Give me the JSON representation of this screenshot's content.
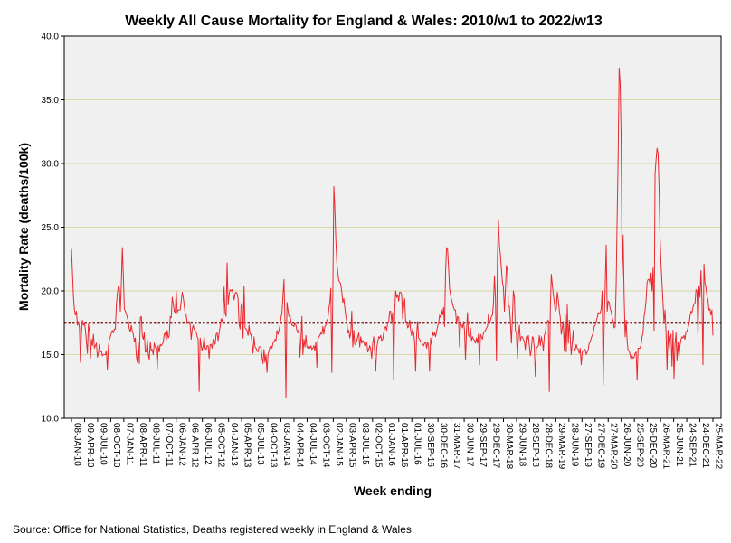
{
  "chart_data": {
    "type": "line",
    "title": "Weekly All Cause Mortality for England & Wales: 2010/w1 to 2022/w13",
    "xlabel": "Week ending",
    "ylabel": "Mortality Rate (deaths/100k)",
    "ylim": [
      10.0,
      40.0
    ],
    "yticks": [
      "10.0",
      "15.0",
      "20.0",
      "25.0",
      "30.0",
      "35.0",
      "40.0"
    ],
    "grid": "horizontal",
    "reference_line": {
      "name": "mean",
      "value": 17.5
    },
    "x_tick_labels": [
      "08-JAN-10",
      "09-APR-10",
      "09-JUL-10",
      "08-OCT-10",
      "07-JAN-11",
      "08-APR-11",
      "08-JUL-11",
      "07-OCT-11",
      "06-JAN-12",
      "06-APR-12",
      "06-JUL-12",
      "05-OCT-12",
      "04-JAN-13",
      "05-APR-13",
      "05-JUL-13",
      "04-OCT-13",
      "03-JAN-14",
      "04-APR-14",
      "04-JUL-14",
      "03-OCT-14",
      "02-JAN-15",
      "03-APR-15",
      "03-JUL-15",
      "02-OCT-15",
      "01-JAN-16",
      "01-APR-16",
      "01-JUL-16",
      "30-SEP-16",
      "30-DEC-16",
      "31-MAR-17",
      "30-JUN-17",
      "29-SEP-17",
      "29-DEC-17",
      "30-MAR-18",
      "29-JUN-18",
      "28-SEP-18",
      "28-DEC-18",
      "29-MAR-19",
      "28-JUN-19",
      "27-SEP-19",
      "27-DEC-19",
      "27-MAR-20",
      "26-JUN-20",
      "25-SEP-20",
      "25-DEC-20",
      "26-MAR-21",
      "25-JUN-21",
      "24-SEP-21",
      "24-DEC-21",
      "25-MAR-22"
    ],
    "series": [
      {
        "name": "Weekly mortality rate",
        "color": "#e8282e",
        "values": [
          23.3,
          21.4,
          19.5,
          18.5,
          18.1,
          18.4,
          17.3,
          17.6,
          17.1,
          14.4,
          16.7,
          17.7,
          17.3,
          17.5,
          16.9,
          16.0,
          15.1,
          17.4,
          16.8,
          14.7,
          16.2,
          15.7,
          16.6,
          15.5,
          15.7,
          15.9,
          14.8,
          15.1,
          15.8,
          15.2,
          15.3,
          14.9,
          15.0,
          15.0,
          15.0,
          15.3,
          13.8,
          15.6,
          16.2,
          16.4,
          16.7,
          16.9,
          16.7,
          17.0,
          17.0,
          18.9,
          19.8,
          20.4,
          20.2,
          18.4,
          20.7,
          23.4,
          21.2,
          18.6,
          18.4,
          18.2,
          17.9,
          17.6,
          17.0,
          16.8,
          17.3,
          16.8,
          16.6,
          16.0,
          16.3,
          14.9,
          14.4,
          15.9,
          14.3,
          17.9,
          18.0,
          16.5,
          16.2,
          16.7,
          15.2,
          15.2,
          16.2,
          15.0,
          14.6,
          16.0,
          15.3,
          15.4,
          15.0,
          15.9,
          15.6,
          15.4,
          13.9,
          15.7,
          15.2,
          15.8,
          15.7,
          15.8,
          16.0,
          16.6,
          16.7,
          16.1,
          16.9,
          16.3,
          16.5,
          18.0,
          17.9,
          19.5,
          19.0,
          18.4,
          18.3,
          20.0,
          18.3,
          18.5,
          18.5,
          18.5,
          19.2,
          19.9,
          19.5,
          18.9,
          18.2,
          18.1,
          17.5,
          17.5,
          17.6,
          17.3,
          16.2,
          17.0,
          17.3,
          17.0,
          16.8,
          16.8,
          16.4,
          16.2,
          12.1,
          16.3,
          15.7,
          15.3,
          15.7,
          16.4,
          15.5,
          15.4,
          15.7,
          15.7,
          14.7,
          15.8,
          15.8,
          15.5,
          16.2,
          16.1,
          15.8,
          16.6,
          16.7,
          16.1,
          16.7,
          17.2,
          17.8,
          17.6,
          18.0,
          20.3,
          18.3,
          18.0,
          22.2,
          18.9,
          19.7,
          20.1,
          20.0,
          20.1,
          19.8,
          19.3,
          19.8,
          19.9,
          19.8,
          19.4,
          17.4,
          17.0,
          18.8,
          19.1,
          16.3,
          20.4,
          17.1,
          17.0,
          16.9,
          16.5,
          17.3,
          16.6,
          16.6,
          15.9,
          15.1,
          16.4,
          15.6,
          15.5,
          15.3,
          15.2,
          15.6,
          15.6,
          15.6,
          14.8,
          14.3,
          15.4,
          14.4,
          15.0,
          13.6,
          15.0,
          15.3,
          15.6,
          15.7,
          15.5,
          15.9,
          16.0,
          16.2,
          16.1,
          16.9,
          16.6,
          16.9,
          17.3,
          17.9,
          18.3,
          19.6,
          20.9,
          17.7,
          11.6,
          19.1,
          18.5,
          18.0,
          18.1,
          17.6,
          17.3,
          17.3,
          17.2,
          17.5,
          17.3,
          16.9,
          16.7,
          17.0,
          14.8,
          16.1,
          18.0,
          15.0,
          16.2,
          15.6,
          16.5,
          15.6,
          15.5,
          15.7,
          15.5,
          15.7,
          15.4,
          15.5,
          15.7,
          15.3,
          16.0,
          14.0,
          16.2,
          16.4,
          16.5,
          16.7,
          16.6,
          17.2,
          16.6,
          17.2,
          17.3,
          17.7,
          17.8,
          18.6,
          19.1,
          20.2,
          13.6,
          19.7,
          28.2,
          26.5,
          24.0,
          22.2,
          21.4,
          20.8,
          20.7,
          20.5,
          19.9,
          19.1,
          19.4,
          18.7,
          18.0,
          17.6,
          16.7,
          16.9,
          16.3,
          16.7,
          18.4,
          15.6,
          16.9,
          15.8,
          15.8,
          16.1,
          16.4,
          16.7,
          15.6,
          16.4,
          15.9,
          16.1,
          16.0,
          15.7,
          15.7,
          16.0,
          15.2,
          15.4,
          15.7,
          15.4,
          14.7,
          15.9,
          16.4,
          15.2,
          13.7,
          15.5,
          16.0,
          16.4,
          16.3,
          16.5,
          16.1,
          16.2,
          16.7,
          17.1,
          17.2,
          16.9,
          17.5,
          17.6,
          18.4,
          18.4,
          17.6,
          18.3,
          13.0,
          18.4,
          20.0,
          19.5,
          19.7,
          19.2,
          19.9,
          19.9,
          19.7,
          17.8,
          18.8,
          19.4,
          17.5,
          17.6,
          17.1,
          17.2,
          17.7,
          16.9,
          16.5,
          17.0,
          16.7,
          16.0,
          13.7,
          16.6,
          17.6,
          16.3,
          16.2,
          16.0,
          16.0,
          15.8,
          15.7,
          15.9,
          16.0,
          15.5,
          16.0,
          15.7,
          13.7,
          16.3,
          15.8,
          16.8,
          16.5,
          16.7,
          16.4,
          16.8,
          17.2,
          17.5,
          18.1,
          17.9,
          18.5,
          18.1,
          18.7,
          17.2,
          21.4,
          23.4,
          23.3,
          21.9,
          20.2,
          19.7,
          19.3,
          19.0,
          18.7,
          18.5,
          18.5,
          17.4,
          18.0,
          17.9,
          15.6,
          17.4,
          17.3,
          17.1,
          17.6,
          16.9,
          14.6,
          16.9,
          18.3,
          16.5,
          16.4,
          17.1,
          16.1,
          16.4,
          16.2,
          16.1,
          15.9,
          16.3,
          15.9,
          16.6,
          14.2,
          16.6,
          16.4,
          16.2,
          16.7,
          16.8,
          16.9,
          17.1,
          17.2,
          18.2,
          17.4,
          17.7,
          18.0,
          18.1,
          19.0,
          21.2,
          19.5,
          14.5,
          22.6,
          25.5,
          23.6,
          22.8,
          21.7,
          20.7,
          20.3,
          18.4,
          20.1,
          22.0,
          21.6,
          18.8,
          18.8,
          17.6,
          15.9,
          17.9,
          20.0,
          19.5,
          16.9,
          16.7,
          14.7,
          16.4,
          17.3,
          16.1,
          16.4,
          16.4,
          16.2,
          16.0,
          15.4,
          16.4,
          16.2,
          16.5,
          15.7,
          14.9,
          15.4,
          16.4,
          16.3,
          15.5,
          13.3,
          15.5,
          15.6,
          15.7,
          16.5,
          15.7,
          16.4,
          16.0,
          15.3,
          16.5,
          16.7,
          17.4,
          17.6,
          17.7,
          12.1,
          18.6,
          21.3,
          20.5,
          19.7,
          19.1,
          18.4,
          18.6,
          19.9,
          19.3,
          18.5,
          17.9,
          16.6,
          17.1,
          17.6,
          15.3,
          18.1,
          15.2,
          18.9,
          15.9,
          17.7,
          16.3,
          15.0,
          15.9,
          16.9,
          15.3,
          15.4,
          15.8,
          15.5,
          15.4,
          15.1,
          15.5,
          14.2,
          15.2,
          15.3,
          15.4,
          15.4,
          15.0,
          15.2,
          15.4,
          15.9,
          16.0,
          16.3,
          16.5,
          16.7,
          17.2,
          17.3,
          17.6,
          17.9,
          18.3,
          18.2,
          18.3,
          18.6,
          20.0,
          12.6,
          17.3,
          20.4,
          23.6,
          18.4,
          19.2,
          19.1,
          18.6,
          18.4,
          17.9,
          17.6,
          17.1,
          17.2,
          20.5,
          25.8,
          30.6,
          37.5,
          36.3,
          32.0,
          21.2,
          24.4,
          19.5,
          16.4,
          17.7,
          16.1,
          15.3,
          15.3,
          15.0,
          14.6,
          14.9,
          14.7,
          14.8,
          15.1,
          15.2,
          13.0,
          15.5,
          15.5,
          15.5,
          15.8,
          16.4,
          16.7,
          18.0,
          18.5,
          19.3,
          20.7,
          20.9,
          20.9,
          20.5,
          21.4,
          20.0,
          21.8,
          16.9,
          29.2,
          30.3,
          31.2,
          30.8,
          28.1,
          24.2,
          22.1,
          20.5,
          19.0,
          17.5,
          18.5,
          16.7,
          13.8,
          16.9,
          15.3,
          16.3,
          16.6,
          14.1,
          16.9,
          13.1,
          15.8,
          16.7,
          14.5,
          16.0,
          14.8,
          15.7,
          16.2,
          16.4,
          16.3,
          16.5,
          16.2,
          16.8,
          16.8,
          17.1,
          17.4,
          18.0,
          18.4,
          18.3,
          18.7,
          19.0,
          19.0,
          20.1,
          20.0,
          16.4,
          20.4,
          19.5,
          21.6,
          19.3,
          14.2,
          22.1,
          20.6,
          20.3,
          19.6,
          19.3,
          18.5,
          18.6,
          18.1,
          18.5,
          16.5
        ]
      }
    ]
  },
  "footer": {
    "source": "Source: Office for National Statistics, Deaths registered weekly in England & Wales."
  }
}
